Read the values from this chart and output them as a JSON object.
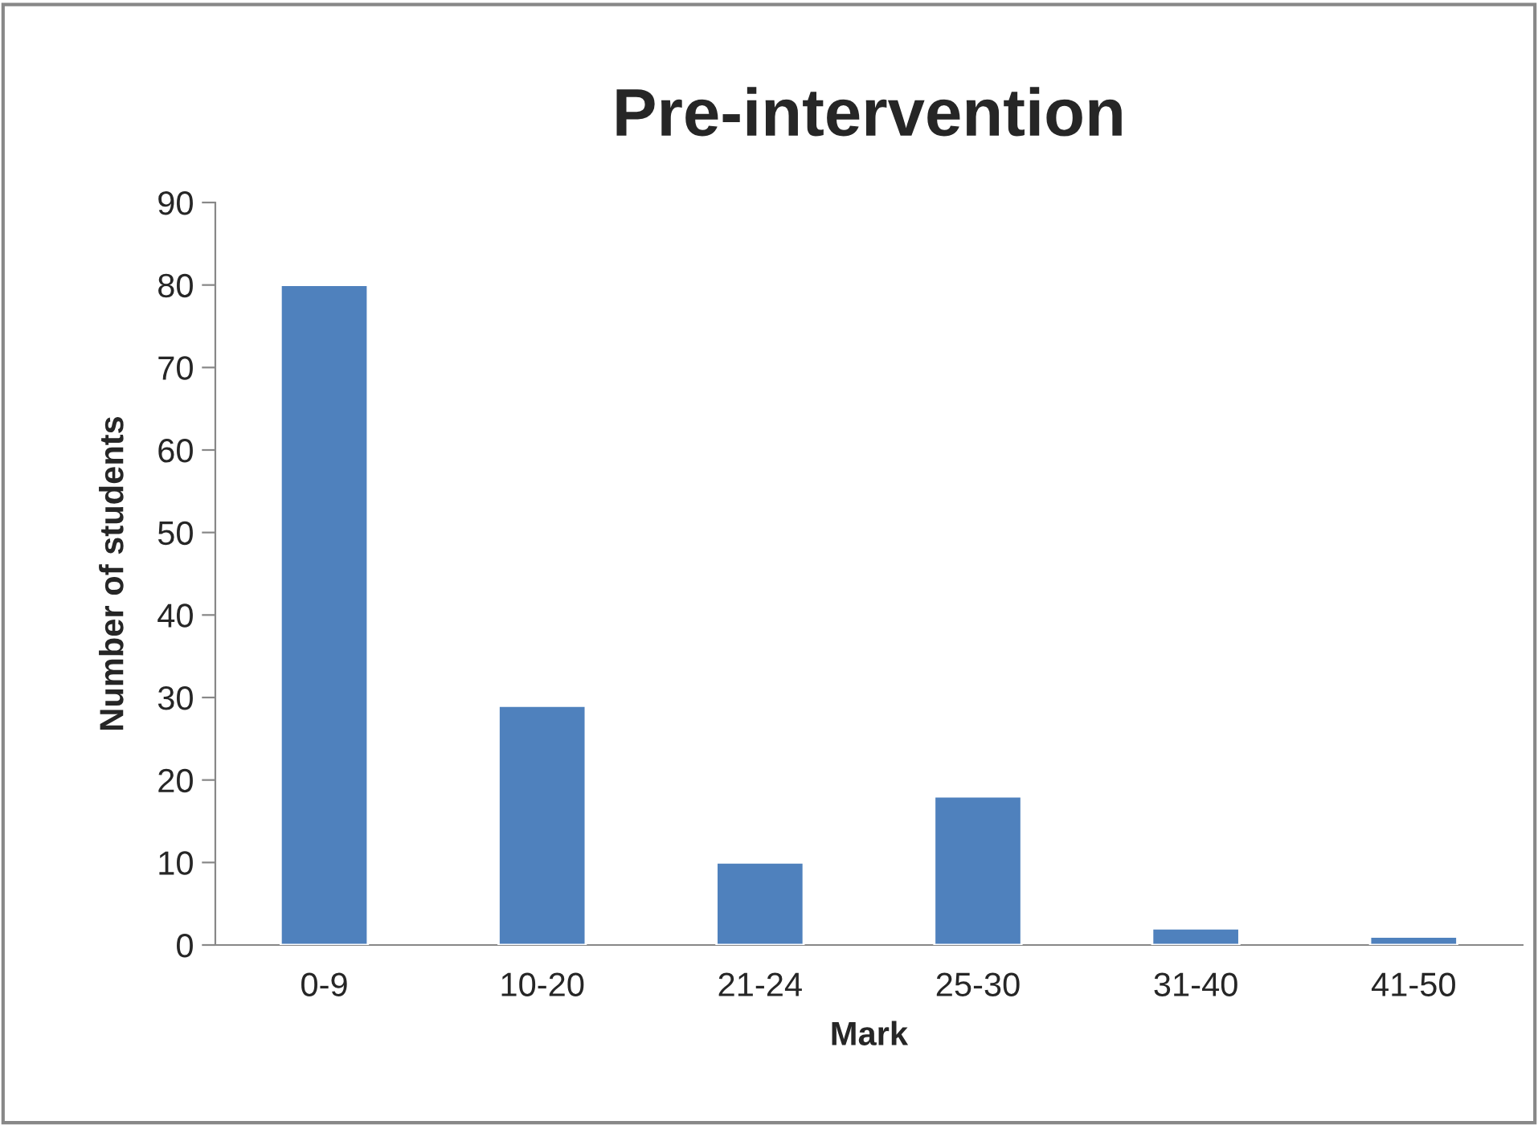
{
  "chart_data": {
    "type": "bar",
    "title": "Pre-intervention",
    "xlabel": "Mark",
    "ylabel": "Number of students",
    "categories": [
      "0-9",
      "10-20",
      "21-24",
      "25-30",
      "31-40",
      "41-50"
    ],
    "values": [
      80,
      29,
      10,
      18,
      2,
      1
    ],
    "color": "#4f81bd",
    "ylim": [
      0,
      90
    ],
    "yticks": [
      0,
      10,
      20,
      30,
      40,
      50,
      60,
      70,
      80,
      90
    ],
    "grid": false,
    "legend": false
  }
}
